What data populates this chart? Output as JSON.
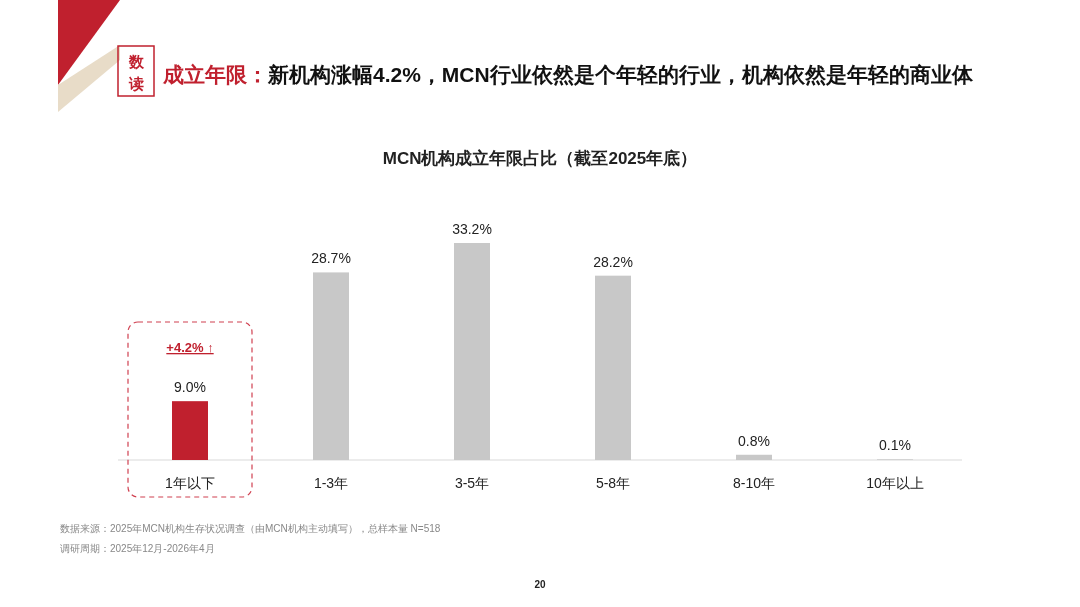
{
  "chart_data": {
    "type": "bar",
    "title": "MCN机构成立年限占比（截至2025年底）",
    "categories": [
      "1年以下",
      "1-3年",
      "3-5年",
      "5-8年",
      "8-10年",
      "10年以上"
    ],
    "values": [
      9.0,
      28.7,
      33.2,
      28.2,
      0.8,
      0.1
    ],
    "colors": [
      "#c0202e",
      "#c8c8c8",
      "#c8c8c8",
      "#c8c8c8",
      "#c8c8c8",
      "#c8c8c8"
    ],
    "value_labels": [
      "9.0%",
      "28.7%",
      "33.2%",
      "28.2%",
      "0.8%",
      "0.1%"
    ],
    "annotations": [
      "数读",
      "成立年限：新机构涨幅4.2%，MCN行业依然是个年轻的行业，机构依然是年轻的商业体",
      "+4.2% ↑",
      "数据来源：2025年MCN机构生存状况调查（由MCN机构主动填写），总样本量 N=518",
      "调研周期：2025年12月-2026年4月",
      "20"
    ]
  }
}
